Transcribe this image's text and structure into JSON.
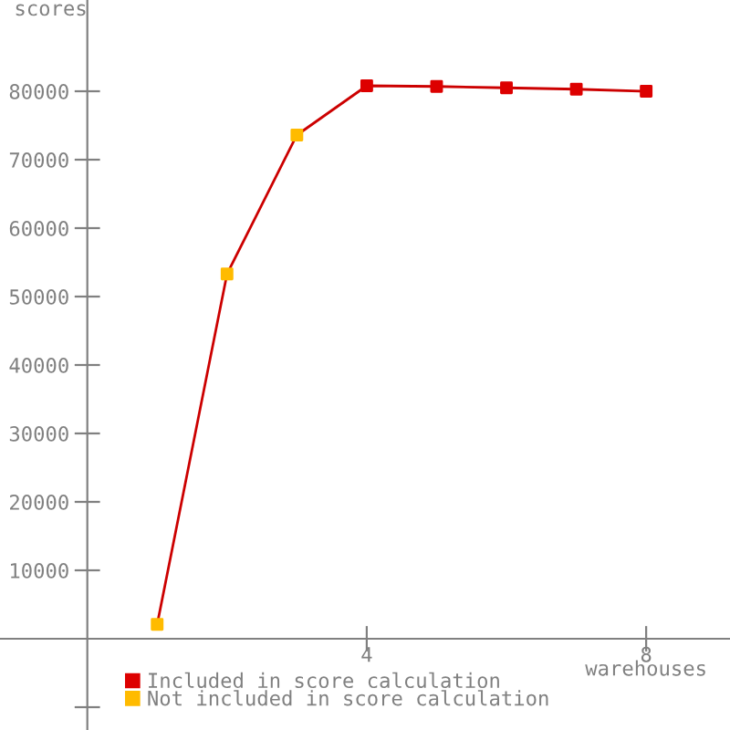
{
  "chart_data": {
    "type": "scatter",
    "xlabel": "warehouses",
    "ylabel": "scores",
    "xlim": [
      -1.25,
      9.2
    ],
    "ylim": [
      -13333,
      93333
    ],
    "xticks": [
      4,
      8
    ],
    "yticks": [
      {
        "value": -10000,
        "label": null
      },
      10000,
      20000,
      30000,
      40000,
      50000,
      60000,
      70000,
      80000
    ],
    "legend": "bottom left",
    "grid": false,
    "marker": "square",
    "series": [
      {
        "type": "line",
        "marker": "none",
        "color": "#cc0000",
        "x": [
          1,
          2,
          3,
          4,
          5,
          6,
          7,
          8
        ],
        "values": [
          2100,
          53300,
          73600,
          80800,
          80700,
          80500,
          80300,
          80000
        ]
      },
      {
        "name": "Included in score calculation",
        "color": "#dd0000",
        "x": [
          4,
          5,
          6,
          7,
          8
        ],
        "values": [
          80800,
          80700,
          80500,
          80300,
          80000
        ]
      },
      {
        "name": "Not included in score calculation",
        "color": "#ffbb00",
        "x": [
          1,
          2,
          3
        ],
        "values": [
          2100,
          53300,
          73600
        ]
      }
    ]
  }
}
